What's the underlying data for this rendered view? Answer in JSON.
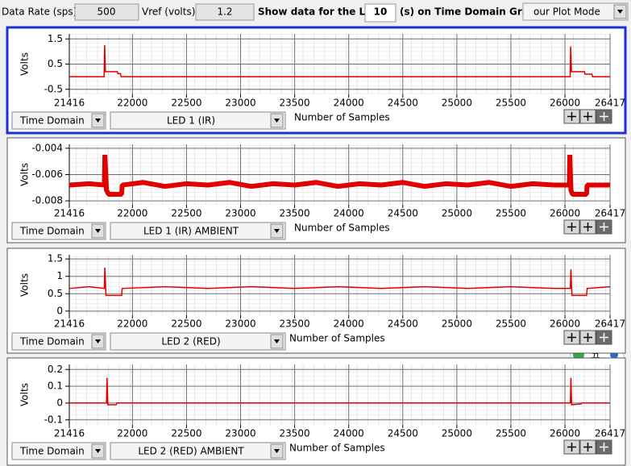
{
  "toolbar": {
    "data_rate_label": "Data Rate (sps)",
    "data_rate": "500",
    "vref_label": "Vref (volts)",
    "vref": "1.2",
    "show_label": "Show data for the LAST",
    "seconds": "10",
    "graph_label": "(s) on Time Domain Graph",
    "plot_mode": "our Plot Mode"
  },
  "ime_indicator": "五",
  "panels": [
    {
      "domain": "Time Domain",
      "channel": "LED 1 (IR)"
    },
    {
      "domain": "Time Domain",
      "channel": "LED 1 (IR) AMBIENT"
    },
    {
      "domain": "Time Domain",
      "channel": "LED 2 (RED)"
    },
    {
      "domain": "Time Domain",
      "channel": "LED 2 (RED) AMBIENT"
    }
  ],
  "chart_data": [
    {
      "type": "line",
      "x_label": "Number of Samples",
      "y_label": "Volts",
      "color": "#e00000",
      "x": [
        21416,
        21738,
        21743,
        21750,
        21860,
        21865,
        21890,
        21895,
        26048,
        26053,
        26060,
        26180,
        26185,
        26250,
        26255,
        26417
      ],
      "values": [
        0,
        0,
        1.25,
        0.2,
        0.2,
        0.12,
        0.12,
        0,
        0,
        1.2,
        0.2,
        0.2,
        0.1,
        0.1,
        0,
        0
      ],
      "xlim": [
        21416,
        26417
      ],
      "xticks": [
        21416,
        22000,
        22500,
        23000,
        23500,
        24000,
        24500,
        25000,
        25500,
        26000,
        26417
      ],
      "ylim": [
        -0.7,
        1.7
      ],
      "yticks": [
        -0.5,
        0.5,
        1.5
      ],
      "grid": true
    },
    {
      "type": "line",
      "x_label": "Number of Samples",
      "y_label": "Volts",
      "color": "#e00000",
      "x": [
        21416,
        21600,
        21740,
        21745,
        21760,
        21780,
        21900,
        21905,
        22100,
        22300,
        22500,
        22700,
        22900,
        23100,
        23300,
        23500,
        23700,
        23900,
        24100,
        24300,
        24500,
        24700,
        24900,
        25100,
        25300,
        25500,
        25700,
        25900,
        26040,
        26045,
        26055,
        26070,
        26200,
        26205,
        26417
      ],
      "values": [
        -0.0068,
        -0.0067,
        -0.0068,
        -0.0045,
        -0.0072,
        -0.0075,
        -0.0075,
        -0.0068,
        -0.0066,
        -0.0069,
        -0.0067,
        -0.0068,
        -0.0066,
        -0.0069,
        -0.0067,
        -0.0068,
        -0.0066,
        -0.0069,
        -0.0067,
        -0.0068,
        -0.0066,
        -0.0069,
        -0.0067,
        -0.0068,
        -0.0066,
        -0.0069,
        -0.0067,
        -0.0068,
        -0.0068,
        -0.0045,
        -0.0072,
        -0.0075,
        -0.0075,
        -0.0068,
        -0.0068
      ],
      "xlim": [
        21416,
        26417
      ],
      "xticks": [
        21416,
        22000,
        22500,
        23000,
        23500,
        24000,
        24500,
        25000,
        25500,
        26000,
        26417
      ],
      "ylim": [
        -0.0083,
        -0.0037
      ],
      "yticks": [
        -0.008,
        -0.006,
        -0.004
      ],
      "grid": true
    },
    {
      "type": "line",
      "x_label": "Number of Samples",
      "y_label": "Volts",
      "color": "#e00000",
      "x": [
        21416,
        21600,
        21740,
        21745,
        21755,
        21900,
        21905,
        22300,
        22700,
        23100,
        23500,
        23900,
        24300,
        24700,
        25100,
        25500,
        25900,
        26050,
        26055,
        26065,
        26200,
        26205,
        26417
      ],
      "values": [
        0.65,
        0.7,
        0.65,
        1.25,
        0.45,
        0.45,
        0.65,
        0.7,
        0.65,
        0.7,
        0.65,
        0.7,
        0.65,
        0.7,
        0.65,
        0.7,
        0.65,
        0.65,
        1.2,
        0.45,
        0.45,
        0.65,
        0.7
      ],
      "xlim": [
        21416,
        26417
      ],
      "xticks": [
        21416,
        22000,
        22500,
        23000,
        23500,
        24000,
        24500,
        25000,
        25500,
        26000,
        26417
      ],
      "ylim": [
        -0.12,
        1.62
      ],
      "yticks": [
        0,
        0.5,
        1,
        1.5
      ],
      "grid": true
    },
    {
      "type": "line",
      "x_label": "Number of Samples",
      "y_label": "Volts",
      "color": "#e00000",
      "x": [
        21416,
        21760,
        21765,
        21772,
        21850,
        21855,
        26050,
        26055,
        26062,
        26150,
        26155,
        26417
      ],
      "values": [
        0,
        0,
        0.15,
        -0.01,
        -0.01,
        0,
        0,
        0.15,
        -0.01,
        -0.005,
        0,
        0
      ],
      "xlim": [
        21416,
        26417
      ],
      "xticks": [
        21416,
        22000,
        22500,
        23000,
        23500,
        24000,
        24500,
        25000,
        25500,
        26000,
        26417
      ],
      "ylim": [
        -0.13,
        0.23
      ],
      "yticks": [
        -0.1,
        0,
        0.1,
        0.2
      ],
      "grid": true
    }
  ]
}
